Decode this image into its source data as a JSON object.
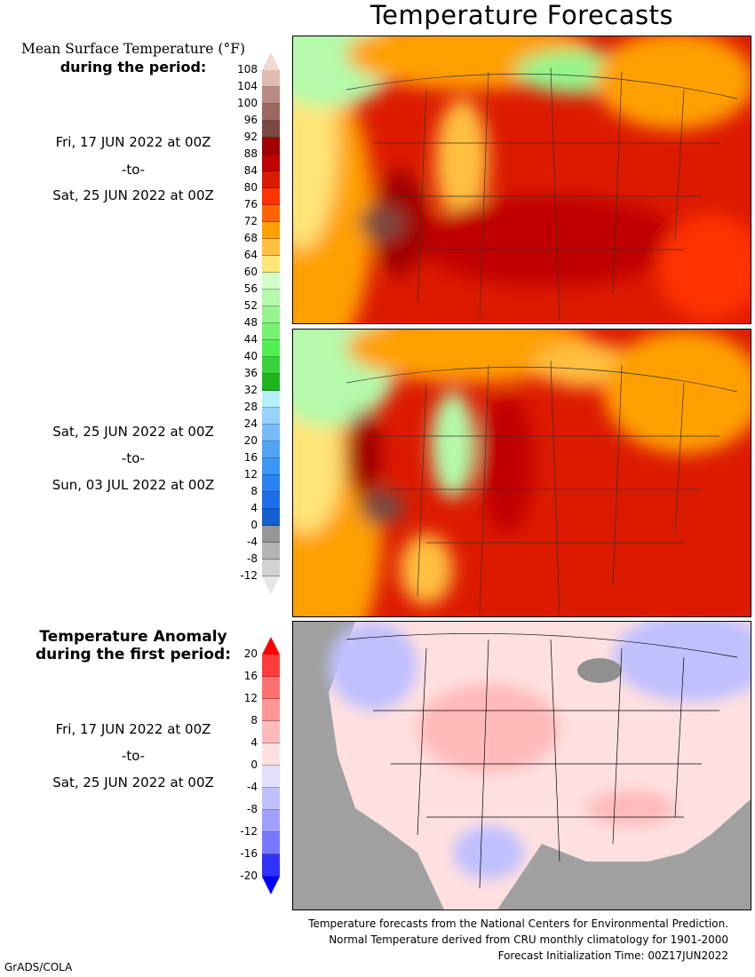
{
  "title": "Temperature Forecasts",
  "panel1": {
    "heading1": "Mean Surface Temperature (°F)",
    "heading2": "during the period:",
    "start": "Fri, 17 JUN 2022 at 00Z",
    "sep": "-to-",
    "end": "Sat, 25 JUN 2022 at 00Z"
  },
  "panel2": {
    "start": "Sat, 25 JUN 2022 at 00Z",
    "sep": "-to-",
    "end": "Sun, 03 JUL 2022 at 00Z"
  },
  "panel3": {
    "heading1": "Temperature Anomaly",
    "heading2": "during the first period:",
    "start": "Fri, 17 JUN 2022 at 00Z",
    "sep": "-to-",
    "end": "Sat, 25 JUN 2022 at 00Z"
  },
  "temp_scale": {
    "labels": [
      "108",
      "104",
      "100",
      "96",
      "92",
      "88",
      "84",
      "80",
      "76",
      "72",
      "68",
      "64",
      "60",
      "56",
      "52",
      "48",
      "44",
      "40",
      "36",
      "32",
      "28",
      "24",
      "20",
      "16",
      "12",
      "8",
      "4",
      "0",
      "-4",
      "-8",
      "-12"
    ],
    "colors": [
      "#e0bcb0",
      "#b88c84",
      "#9c6860",
      "#7a4a40",
      "#a00000",
      "#c00000",
      "#dc1a00",
      "#ff3200",
      "#ff6400",
      "#ffa000",
      "#ffc040",
      "#ffe478",
      "#d0ffc8",
      "#b4faaa",
      "#96f58c",
      "#78f070",
      "#50f050",
      "#37d23c",
      "#1eb41e",
      "#b4f0fa",
      "#96d2fa",
      "#78b9fa",
      "#50a5f5",
      "#3c96f5",
      "#2882f0",
      "#1e6eeb",
      "#1460d2",
      "#969696",
      "#b4b4b4",
      "#d2d2d2"
    ],
    "over": "#f0d8d0",
    "under": "#e6e6e6"
  },
  "anom_scale": {
    "labels": [
      "20",
      "16",
      "12",
      "8",
      "4",
      "0",
      "-4",
      "-8",
      "-12",
      "-16",
      "-20"
    ],
    "colors": [
      "#ff3c3c",
      "#ff7070",
      "#ff9696",
      "#ffbaba",
      "#ffe0e0",
      "#e0e0ff",
      "#c0c0ff",
      "#a0a0ff",
      "#7878ff",
      "#3232ff"
    ],
    "over": "#ff0000",
    "under": "#0000ff"
  },
  "footer": [
    "Temperature forecasts from the National Centers for Environmental Prediction.",
    "Normal Temperature derived from CRU monthly climatology for 1901-2000",
    "Forecast Initialization Time: 00Z17JUN2022"
  ],
  "credit": "GrADS/COLA"
}
